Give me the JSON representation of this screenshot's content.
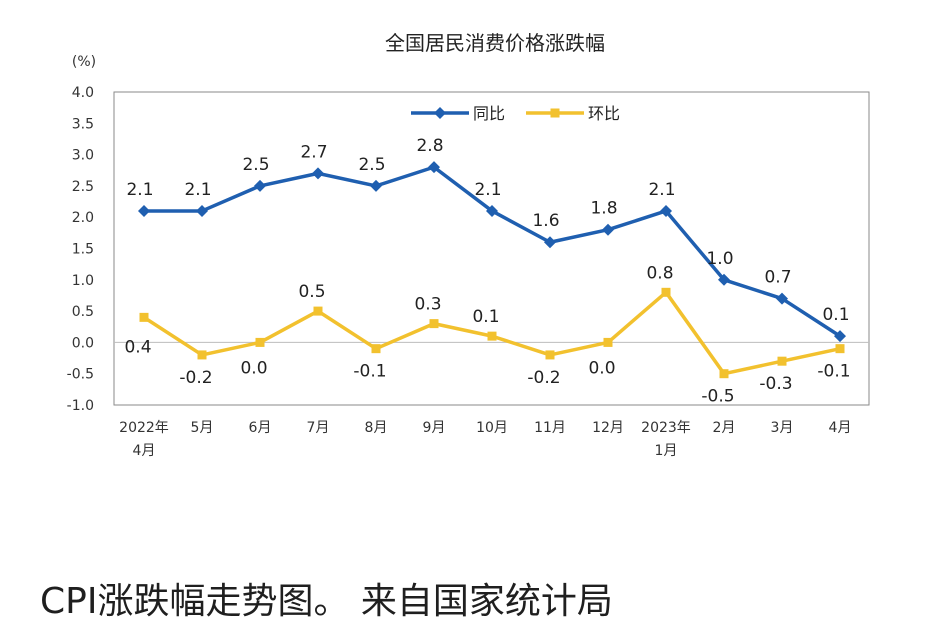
{
  "chart_data": {
    "type": "line",
    "title": "全国居民消费价格涨跌幅",
    "unit_label": "(%)",
    "categories": [
      [
        "2022年",
        "4月"
      ],
      [
        "5月"
      ],
      [
        "6月"
      ],
      [
        "7月"
      ],
      [
        "8月"
      ],
      [
        "9月"
      ],
      [
        "10月"
      ],
      [
        "11月"
      ],
      [
        "12月"
      ],
      [
        "2023年",
        "1月"
      ],
      [
        "2月"
      ],
      [
        "3月"
      ],
      [
        "4月"
      ]
    ],
    "series": [
      {
        "name": "同比",
        "color": "#1f5fb0",
        "marker": "diamond",
        "values": [
          2.1,
          2.1,
          2.5,
          2.7,
          2.5,
          2.8,
          2.1,
          1.6,
          1.8,
          2.1,
          1.0,
          0.7,
          0.1
        ],
        "labels": [
          "2.1",
          "2.1",
          "2.5",
          "2.7",
          "2.5",
          "2.8",
          "2.1",
          "1.6",
          "1.8",
          "2.1",
          "1.0",
          "0.7",
          "0.1"
        ]
      },
      {
        "name": "环比",
        "color": "#f2c12e",
        "marker": "square",
        "values": [
          0.4,
          -0.2,
          0.0,
          0.5,
          -0.1,
          0.3,
          0.1,
          -0.2,
          0.0,
          0.8,
          -0.5,
          -0.3,
          -0.1
        ],
        "labels": [
          "0.4",
          "-0.2",
          "0.0",
          "0.5",
          "-0.1",
          "0.3",
          "0.1",
          "-0.2",
          "0.0",
          "0.8",
          "-0.5",
          "-0.3",
          "-0.1"
        ]
      }
    ],
    "ylim": [
      -1.0,
      4.0
    ],
    "yticks": [
      "4.0",
      "3.5",
      "3.0",
      "2.5",
      "2.0",
      "1.5",
      "1.0",
      "0.5",
      "0.0",
      "-0.5",
      "-1.0"
    ],
    "grid": false,
    "legend_position": "top-center"
  },
  "caption": "CPI涨跌幅走势图。 来自国家统计局"
}
